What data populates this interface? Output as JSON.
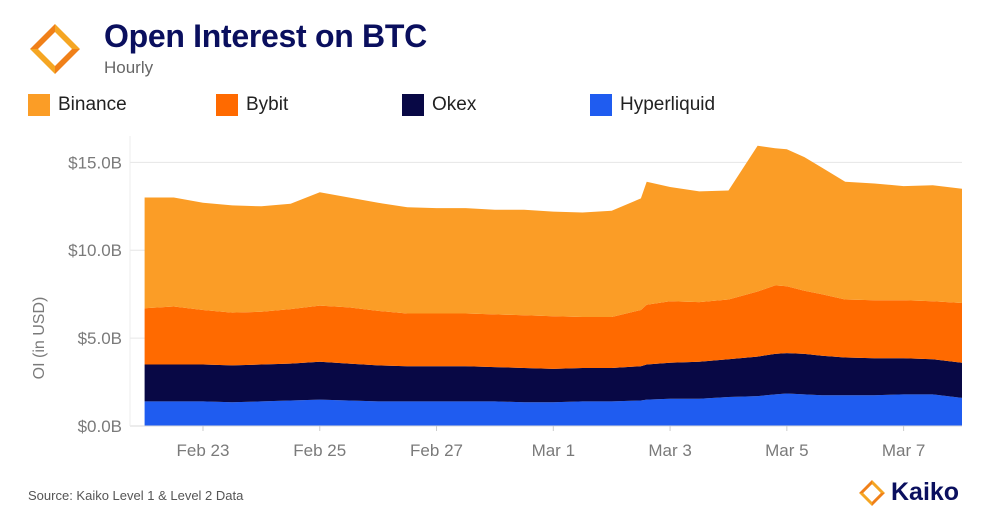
{
  "header": {
    "title": "Open Interest on BTC",
    "subtitle": "Hourly"
  },
  "footer": {
    "source": "Source: Kaiko Level 1 & Level 2 Data",
    "brand": "Kaiko"
  },
  "chart_data": {
    "type": "area",
    "stacked": true,
    "ylabel": "OI (in USD)",
    "ylim": [
      0,
      16.5
    ],
    "yticks": [
      0,
      5,
      10,
      15
    ],
    "ytick_labels": [
      "$0.0B",
      "$5.0B",
      "$10.0B",
      "$15.0B"
    ],
    "xticks": [
      "Feb 23",
      "Feb 25",
      "Feb 27",
      "Mar 1",
      "Mar 3",
      "Mar 5",
      "Mar 7"
    ],
    "xtick_positions": [
      1,
      3,
      5,
      7,
      9,
      11,
      13
    ],
    "x_range": [
      -0.25,
      14.0
    ],
    "grid": "horizontal",
    "legend_position": "top",
    "x": [
      0.0,
      0.5,
      1.0,
      1.5,
      2.0,
      2.5,
      3.0,
      3.5,
      4.0,
      4.5,
      5.0,
      5.5,
      6.0,
      6.5,
      7.0,
      7.5,
      8.0,
      8.5,
      8.6,
      9.0,
      9.5,
      10.0,
      10.5,
      10.8,
      11.0,
      11.3,
      11.6,
      12.0,
      12.5,
      13.0,
      13.5,
      14.0
    ],
    "series": [
      {
        "name": "Hyperliquid",
        "color": "#1f5cf0",
        "values": [
          1.4,
          1.4,
          1.4,
          1.35,
          1.4,
          1.45,
          1.5,
          1.45,
          1.4,
          1.4,
          1.4,
          1.4,
          1.4,
          1.35,
          1.35,
          1.4,
          1.4,
          1.45,
          1.5,
          1.55,
          1.55,
          1.65,
          1.7,
          1.8,
          1.85,
          1.8,
          1.75,
          1.75,
          1.75,
          1.8,
          1.8,
          1.6
        ]
      },
      {
        "name": "Okex",
        "color": "#080845",
        "values": [
          2.1,
          2.1,
          2.1,
          2.1,
          2.1,
          2.1,
          2.15,
          2.1,
          2.05,
          2.0,
          2.0,
          2.0,
          1.95,
          1.95,
          1.9,
          1.9,
          1.9,
          1.95,
          2.0,
          2.05,
          2.1,
          2.15,
          2.25,
          2.3,
          2.3,
          2.3,
          2.25,
          2.15,
          2.1,
          2.05,
          2.0,
          2.0
        ]
      },
      {
        "name": "Bybit",
        "color": "#ff6a00",
        "values": [
          3.2,
          3.3,
          3.1,
          3.0,
          3.0,
          3.1,
          3.2,
          3.2,
          3.1,
          3.0,
          3.0,
          3.0,
          3.0,
          3.0,
          3.0,
          2.9,
          2.9,
          3.2,
          3.4,
          3.5,
          3.4,
          3.4,
          3.7,
          3.9,
          3.8,
          3.6,
          3.5,
          3.3,
          3.3,
          3.3,
          3.3,
          3.4
        ]
      },
      {
        "name": "Binance",
        "color": "#fb9d26",
        "values": [
          6.3,
          6.2,
          6.1,
          6.1,
          6.0,
          6.0,
          6.45,
          6.25,
          6.15,
          6.05,
          6.0,
          6.0,
          5.95,
          6.0,
          5.95,
          5.95,
          6.05,
          6.35,
          7.0,
          6.5,
          6.3,
          6.2,
          8.3,
          7.8,
          7.8,
          7.6,
          7.2,
          6.7,
          6.65,
          6.5,
          6.6,
          6.5
        ]
      }
    ],
    "legend_order": [
      "Binance",
      "Bybit",
      "Okex",
      "Hyperliquid"
    ]
  }
}
